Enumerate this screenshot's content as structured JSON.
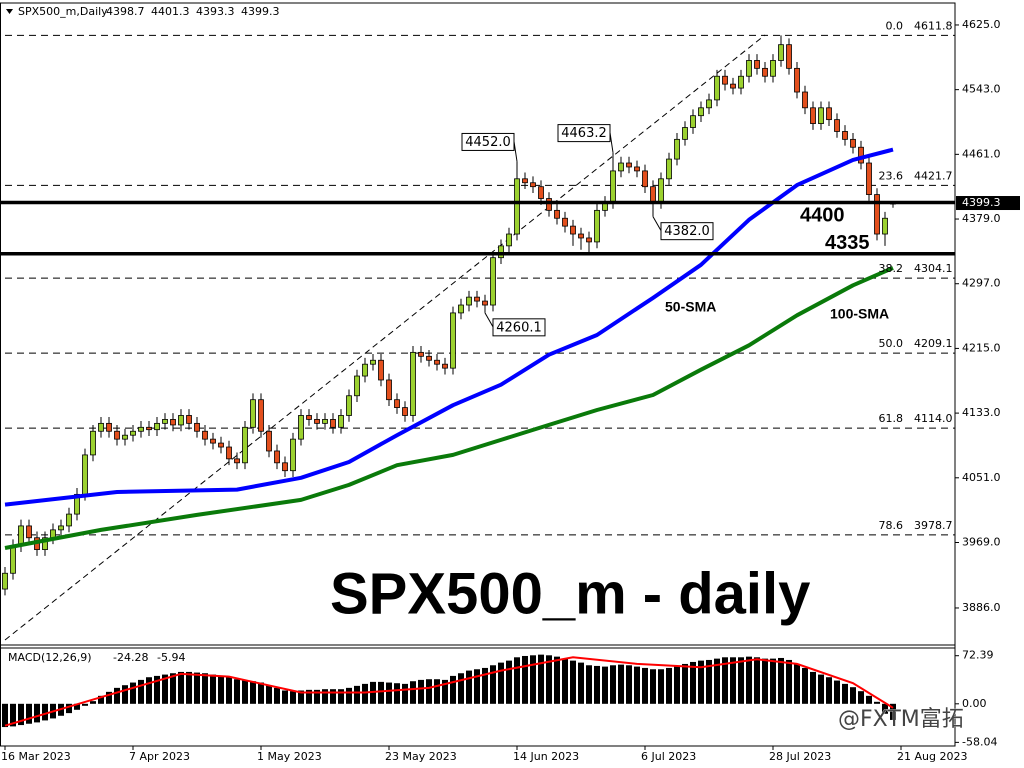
{
  "chart_data": {
    "type": "candlestick",
    "title": "SPX500_m,Daily",
    "big_title": "SPX500_m - daily",
    "watermark": "@FXTM富拓",
    "xlim": [
      -0.625,
      118.75
    ],
    "ylim": [
      3845.4,
      4650.3
    ],
    "yticks": [
      {
        "value": 4625,
        "label": "4625.0"
      },
      {
        "value": 4543,
        "label": "4543.0"
      },
      {
        "value": 4461,
        "label": "4461.0"
      },
      {
        "value": 4379,
        "label": "4379.0"
      },
      {
        "value": 4297,
        "label": "4297.0"
      },
      {
        "value": 4215,
        "label": "4215.0"
      },
      {
        "value": 4133,
        "label": "4133.0"
      },
      {
        "value": 4051,
        "label": "4051.0"
      },
      {
        "value": 3969,
        "label": "3969.0"
      },
      {
        "value": 3886,
        "label": "3886.0"
      }
    ],
    "xticks": [
      {
        "value": 0,
        "label": "16 Mar 2023"
      },
      {
        "value": 16,
        "label": "7 Apr 2023"
      },
      {
        "value": 32,
        "label": "1 May 2023"
      },
      {
        "value": 48,
        "label": "23 May 2023"
      },
      {
        "value": 64,
        "label": "14 Jun 2023"
      },
      {
        "value": 80,
        "label": "6 Jul 2023"
      },
      {
        "value": 96,
        "label": "28 Jul 2023"
      },
      {
        "value": 112,
        "label": "21 Aug 2023"
      }
    ],
    "up_color": "#9bd12f",
    "down_color": "#e34f1d",
    "candles": {
      "open": [
        3910,
        3930,
        3965,
        3990,
        3975,
        3960,
        3975,
        3985,
        3990,
        4005,
        4030,
        4080,
        4110,
        4120,
        4110,
        4100,
        4105,
        4110,
        4115,
        4112,
        4120,
        4125,
        4118,
        4130,
        4120,
        4110,
        4100,
        4095,
        4090,
        4075,
        4070,
        4115,
        4150,
        4110,
        4085,
        4070,
        4060,
        4100,
        4130,
        4125,
        4120,
        4125,
        4115,
        4130,
        4155,
        4180,
        4195,
        4200,
        4175,
        4150,
        4140,
        4130,
        4210,
        4205,
        4200,
        4195,
        4190,
        4260,
        4270,
        4280,
        4275,
        4270,
        4330,
        4345,
        4360,
        4430,
        4425,
        4420,
        4405,
        4390,
        4380,
        4370,
        4360,
        4355,
        4350,
        4390,
        4400,
        4440,
        4450,
        4445,
        4440,
        4420,
        4400,
        4430,
        4455,
        4480,
        4495,
        4510,
        4520,
        4530,
        4560,
        4550,
        4545,
        4560,
        4580,
        4570,
        4560,
        4580,
        4600,
        4570,
        4540,
        4520,
        4500,
        4520,
        4505,
        4490,
        4480,
        4470,
        4450,
        4410,
        4360,
        4398.7
      ],
      "high": [
        3938,
        3973,
        3998,
        3998,
        3983,
        3983,
        3993,
        3998,
        4013,
        4038,
        4088,
        4118,
        4128,
        4128,
        4118,
        4113,
        4118,
        4123,
        4123,
        4128,
        4133,
        4133,
        4138,
        4138,
        4128,
        4118,
        4108,
        4103,
        4098,
        4083,
        4123,
        4158,
        4158,
        4118,
        4093,
        4078,
        4108,
        4138,
        4138,
        4133,
        4133,
        4133,
        4138,
        4163,
        4188,
        4203,
        4208,
        4208,
        4183,
        4158,
        4148,
        4218,
        4218,
        4213,
        4208,
        4203,
        4268,
        4278,
        4288,
        4288,
        4283,
        4338,
        4353,
        4368,
        4452,
        4438,
        4433,
        4428,
        4413,
        4398,
        4388,
        4378,
        4368,
        4363,
        4398,
        4408,
        4463.2,
        4458,
        4458,
        4453,
        4448,
        4428,
        4438,
        4463,
        4488,
        4503,
        4518,
        4528,
        4538,
        4568,
        4568,
        4558,
        4568,
        4588,
        4588,
        4578,
        4588,
        4611.8,
        4608,
        4578,
        4548,
        4528,
        4528,
        4528,
        4513,
        4498,
        4488,
        4478,
        4458,
        4418,
        4388,
        4401.3
      ],
      "low": [
        3902,
        3922,
        3957,
        3967,
        3952,
        3952,
        3967,
        3977,
        3982,
        3997,
        4022,
        4072,
        4102,
        4102,
        4092,
        4092,
        4097,
        4102,
        4104,
        4104,
        4112,
        4110,
        4110,
        4112,
        4102,
        4092,
        4087,
        4082,
        4067,
        4062,
        4062,
        4107,
        4102,
        4077,
        4062,
        4052,
        4052,
        4092,
        4117,
        4112,
        4112,
        4107,
        4107,
        4122,
        4147,
        4172,
        4187,
        4167,
        4142,
        4132,
        4122,
        4122,
        4197,
        4192,
        4187,
        4182,
        4182,
        4252,
        4262,
        4267,
        4260.1,
        4262,
        4322,
        4337,
        4352,
        4417,
        4412,
        4397,
        4382,
        4372,
        4362,
        4345,
        4340,
        4335,
        4342,
        4382,
        4392,
        4432,
        4437,
        4432,
        4412,
        4382,
        4392,
        4422,
        4447,
        4472,
        4487,
        4502,
        4512,
        4522,
        4542,
        4537,
        4537,
        4552,
        4562,
        4552,
        4552,
        4572,
        4562,
        4532,
        4512,
        4492,
        4492,
        4497,
        4482,
        4472,
        4462,
        4442,
        4402,
        4352,
        4345,
        4393.3
      ],
      "close": [
        3930,
        3965,
        3990,
        3975,
        3960,
        3975,
        3985,
        3990,
        4005,
        4030,
        4080,
        4110,
        4120,
        4110,
        4100,
        4105,
        4110,
        4115,
        4112,
        4120,
        4125,
        4118,
        4130,
        4120,
        4110,
        4100,
        4095,
        4090,
        4075,
        4070,
        4115,
        4150,
        4110,
        4085,
        4070,
        4060,
        4100,
        4130,
        4125,
        4120,
        4125,
        4115,
        4130,
        4155,
        4180,
        4195,
        4200,
        4175,
        4150,
        4140,
        4130,
        4210,
        4205,
        4200,
        4195,
        4190,
        4260,
        4270,
        4280,
        4275,
        4270,
        4330,
        4345,
        4360,
        4430,
        4425,
        4420,
        4405,
        4390,
        4380,
        4370,
        4360,
        4355,
        4350,
        4390,
        4400,
        4440,
        4450,
        4445,
        4440,
        4420,
        4400,
        4430,
        4455,
        4480,
        4495,
        4510,
        4520,
        4530,
        4560,
        4550,
        4545,
        4560,
        4580,
        4570,
        4560,
        4580,
        4600,
        4570,
        4540,
        4520,
        4500,
        4520,
        4505,
        4490,
        4480,
        4470,
        4450,
        4410,
        4360,
        4380,
        4399.3
      ]
    },
    "series": [
      {
        "name": "50-SMA",
        "color": "#0000ff",
        "x": [
          0,
          14,
          29,
          37,
          43,
          49,
          56,
          62,
          68,
          74,
          81,
          87,
          93,
          99,
          106,
          111
        ],
        "values": [
          4017,
          4033,
          4036,
          4051,
          4071,
          4105,
          4143,
          4169,
          4207,
          4232,
          4279,
          4321,
          4378,
          4422,
          4454,
          4467
        ]
      },
      {
        "name": "100-SMA",
        "color": "#0a7a0a",
        "x": [
          0,
          12,
          24,
          37,
          43,
          49,
          56,
          62,
          68,
          74,
          81,
          87,
          93,
          99,
          106,
          111
        ],
        "values": [
          3962,
          3985,
          4004,
          4023,
          4042,
          4067,
          4080,
          4099,
          4118,
          4137,
          4156,
          4188,
          4219,
          4257,
          4295,
          4317
        ]
      }
    ],
    "annotations": [
      {
        "label": "4452.0",
        "x": 64,
        "field": "high"
      },
      {
        "label": "4463.2",
        "x": 76,
        "field": "high"
      },
      {
        "label": "4382.0",
        "x": 81,
        "field": "low"
      },
      {
        "label": "4260.1",
        "x": 60,
        "field": "low"
      }
    ],
    "levels": [
      4400,
      4335
    ],
    "fibonacci": [
      {
        "level": "0.0",
        "price": 4611.8
      },
      {
        "level": "23.6",
        "price": 4421.7
      },
      {
        "level": "38.2",
        "price": 4304.1
      },
      {
        "level": "50.0",
        "price": 4209.1
      },
      {
        "level": "61.8",
        "price": {
          "value": 4114,
          "label": "4114.0"
        }
      },
      {
        "level": "78.6",
        "price": 3978.7
      }
    ],
    "macd": {
      "name": "MACD(12,26,9)",
      "ylim": [
        -62,
        84
      ],
      "yticks": [
        72.39,
        {
          "value": 0,
          "label": "0.00"
        },
        -58.04
      ],
      "histogram": [
        -35,
        -34,
        -32,
        -30,
        -28,
        -25,
        -22,
        -18,
        -14,
        -9,
        -3,
        4,
        12,
        18,
        24,
        28,
        32,
        36,
        40,
        42,
        44,
        46,
        48,
        48,
        47,
        46,
        44,
        42,
        40,
        37,
        35,
        34,
        32,
        28,
        24,
        20,
        19,
        20,
        21,
        21,
        22,
        22,
        22,
        24,
        27,
        30,
        33,
        33,
        32,
        31,
        30,
        34,
        36,
        37,
        37,
        36,
        42,
        46,
        50,
        52,
        54,
        58,
        62,
        65,
        70,
        72,
        73,
        74,
        73,
        71,
        68,
        65,
        62,
        58,
        57,
        56,
        58,
        59,
        58,
        56,
        54,
        52,
        52,
        54,
        57,
        60,
        63,
        65,
        66,
        68,
        70,
        70,
        70,
        71,
        70,
        68,
        68,
        69,
        66,
        60,
        54,
        48,
        44,
        40,
        35,
        30,
        25,
        19,
        12,
        3,
        -15,
        -24.28
      ],
      "signal": {
        "color": "#ff0000",
        "x": [
          0,
          12,
          22,
          28,
          37,
          45,
          53,
          62,
          71,
          79,
          87,
          94,
          99,
          106,
          111
        ],
        "values": [
          -33,
          10,
          45,
          41,
          17,
          17,
          24,
          50,
          70,
          60,
          55,
          67,
          60,
          31,
          -5.94
        ]
      }
    }
  }
}
